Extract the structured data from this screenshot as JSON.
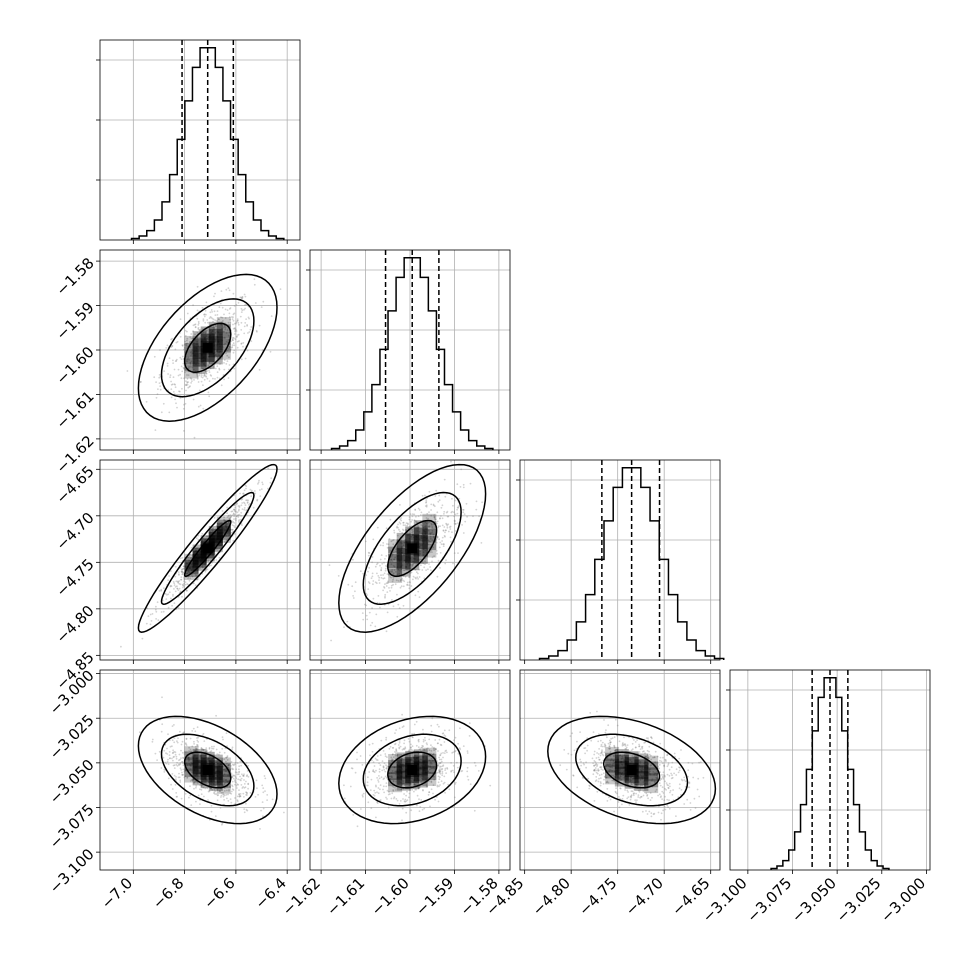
{
  "chart_data": {
    "type": "corner",
    "grid": true,
    "parameters": [
      {
        "range": [
          -7.13,
          -6.35
        ],
        "ticks": [
          "−7.0",
          "−6.8",
          "−6.6",
          "−6.4"
        ],
        "tick_values": [
          -7.0,
          -6.8,
          -6.6,
          -6.4
        ],
        "mean": -6.71,
        "sd": 0.09,
        "quantiles": [
          -6.81,
          -6.71,
          -6.61
        ]
      },
      {
        "range": [
          -1.6225,
          -1.5775
        ],
        "ticks": [
          "−1.62",
          "−1.61",
          "−1.60",
          "−1.59",
          "−1.58"
        ],
        "tick_values": [
          -1.62,
          -1.61,
          -1.6,
          -1.59,
          -1.58
        ],
        "mean": -1.5995,
        "sd": 0.0055,
        "quantiles": [
          -1.6055,
          -1.5995,
          -1.5935
        ]
      },
      {
        "range": [
          -4.855,
          -4.64
        ],
        "ticks": [
          "−4.85",
          "−4.80",
          "−4.75",
          "−4.70",
          "−4.65"
        ],
        "tick_values": [
          -4.85,
          -4.8,
          -4.75,
          -4.7,
          -4.65
        ],
        "mean": -4.735,
        "sd": 0.03,
        "quantiles": [
          -4.767,
          -4.735,
          -4.705
        ]
      },
      {
        "range": [
          -3.11,
          -2.998
        ],
        "ticks": [
          "−3.100",
          "−3.075",
          "−3.050",
          "−3.025",
          "−3.000"
        ],
        "tick_values": [
          -3.1,
          -3.075,
          -3.05,
          -3.025,
          -3.0
        ],
        "mean": -3.054,
        "sd": 0.01,
        "quantiles": [
          -3.064,
          -3.054,
          -3.044
        ]
      }
    ],
    "correlations": [
      [
        1.0,
        0.55,
        0.95,
        -0.45
      ],
      [
        0.55,
        1.0,
        0.65,
        0.25
      ],
      [
        0.95,
        0.65,
        1.0,
        -0.35
      ],
      [
        -0.45,
        0.25,
        -0.35,
        1.0
      ]
    ],
    "histogram_bins": 20,
    "contour_levels": [
      0.393,
      0.865,
      0.989
    ],
    "scatter_color": "#808080",
    "line_color": "#000000"
  }
}
